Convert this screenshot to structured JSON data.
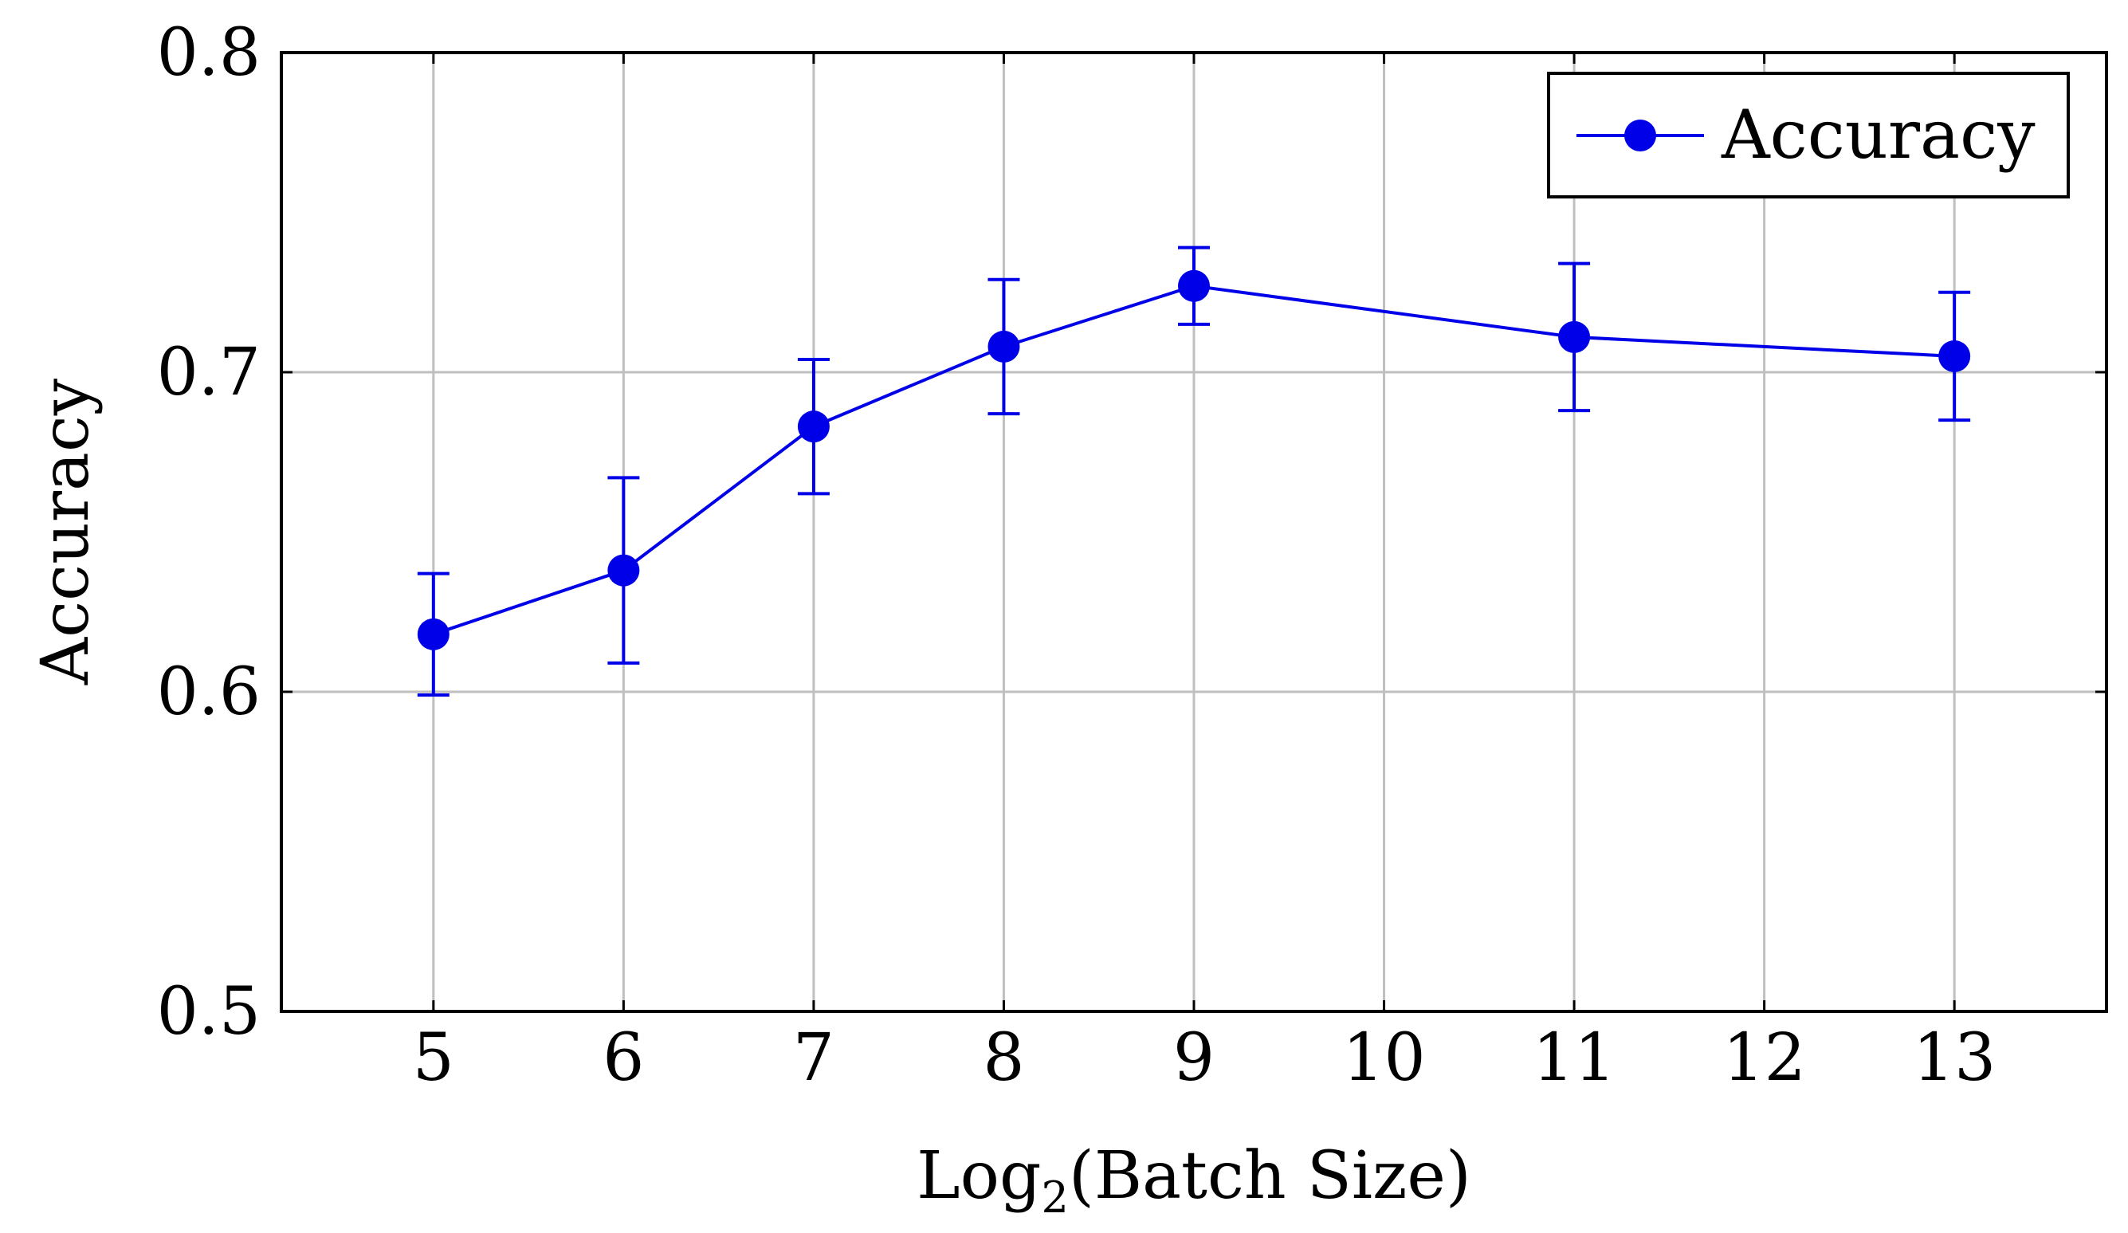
{
  "chart_data": {
    "type": "line",
    "title": "",
    "xlabel": {
      "main": "Log",
      "subscript": "2",
      "rest": "(Batch Size)"
    },
    "ylabel": "Accuracy",
    "xlim": [
      4.2,
      13.8
    ],
    "ylim": [
      0.5,
      0.8
    ],
    "x_ticks": [
      5,
      6,
      7,
      8,
      9,
      10,
      11,
      12,
      13
    ],
    "x_tick_labels": [
      "5",
      "6",
      "7",
      "8",
      "9",
      "10",
      "11",
      "12",
      "13"
    ],
    "y_ticks": [
      0.5,
      0.6,
      0.7,
      0.8
    ],
    "y_tick_labels": [
      "0.5",
      "0.6",
      "0.7",
      "0.8"
    ],
    "grid": true,
    "legend_position": "top-right",
    "series": [
      {
        "name": "Accuracy",
        "color": "#0000e8",
        "marker": "circle",
        "x": [
          5,
          6,
          7,
          8,
          9,
          11,
          13
        ],
        "values": [
          0.618,
          0.638,
          0.683,
          0.708,
          0.727,
          0.711,
          0.705
        ],
        "error_lower": [
          0.599,
          0.609,
          0.662,
          0.687,
          0.715,
          0.688,
          0.685
        ],
        "error_upper": [
          0.637,
          0.667,
          0.704,
          0.729,
          0.739,
          0.734,
          0.725
        ]
      }
    ]
  },
  "colors": {
    "grid": "#bfbfbf",
    "axes": "#000000",
    "series": "#0000e8"
  }
}
